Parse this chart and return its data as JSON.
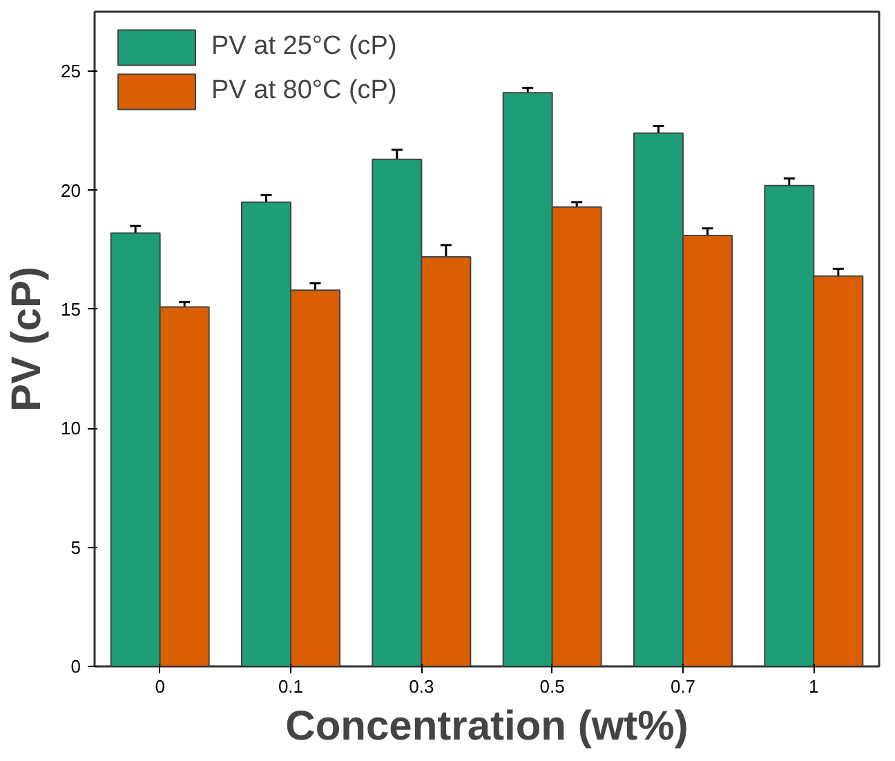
{
  "chart_data": {
    "type": "bar",
    "xlabel": "Concentration (wt%)",
    "ylabel": "PV (cP)",
    "categories": [
      "0",
      "0.1",
      "0.3",
      "0.5",
      "0.7",
      "1"
    ],
    "series": [
      {
        "name": "PV at 25°C (cP)",
        "color": "#1e9e78",
        "values": [
          18.2,
          19.5,
          21.3,
          24.1,
          22.4,
          20.2
        ],
        "errors": [
          0.3,
          0.3,
          0.4,
          0.2,
          0.3,
          0.3
        ]
      },
      {
        "name": "PV at 80°C (cP)",
        "color": "#d95f02",
        "values": [
          15.1,
          15.8,
          17.2,
          19.3,
          18.1,
          16.4
        ],
        "errors": [
          0.2,
          0.3,
          0.5,
          0.2,
          0.3,
          0.3
        ]
      }
    ],
    "ylim": [
      0,
      27.5
    ],
    "yticks": [
      0,
      5,
      10,
      15,
      20,
      25
    ],
    "grid": false,
    "legend": "top left"
  }
}
